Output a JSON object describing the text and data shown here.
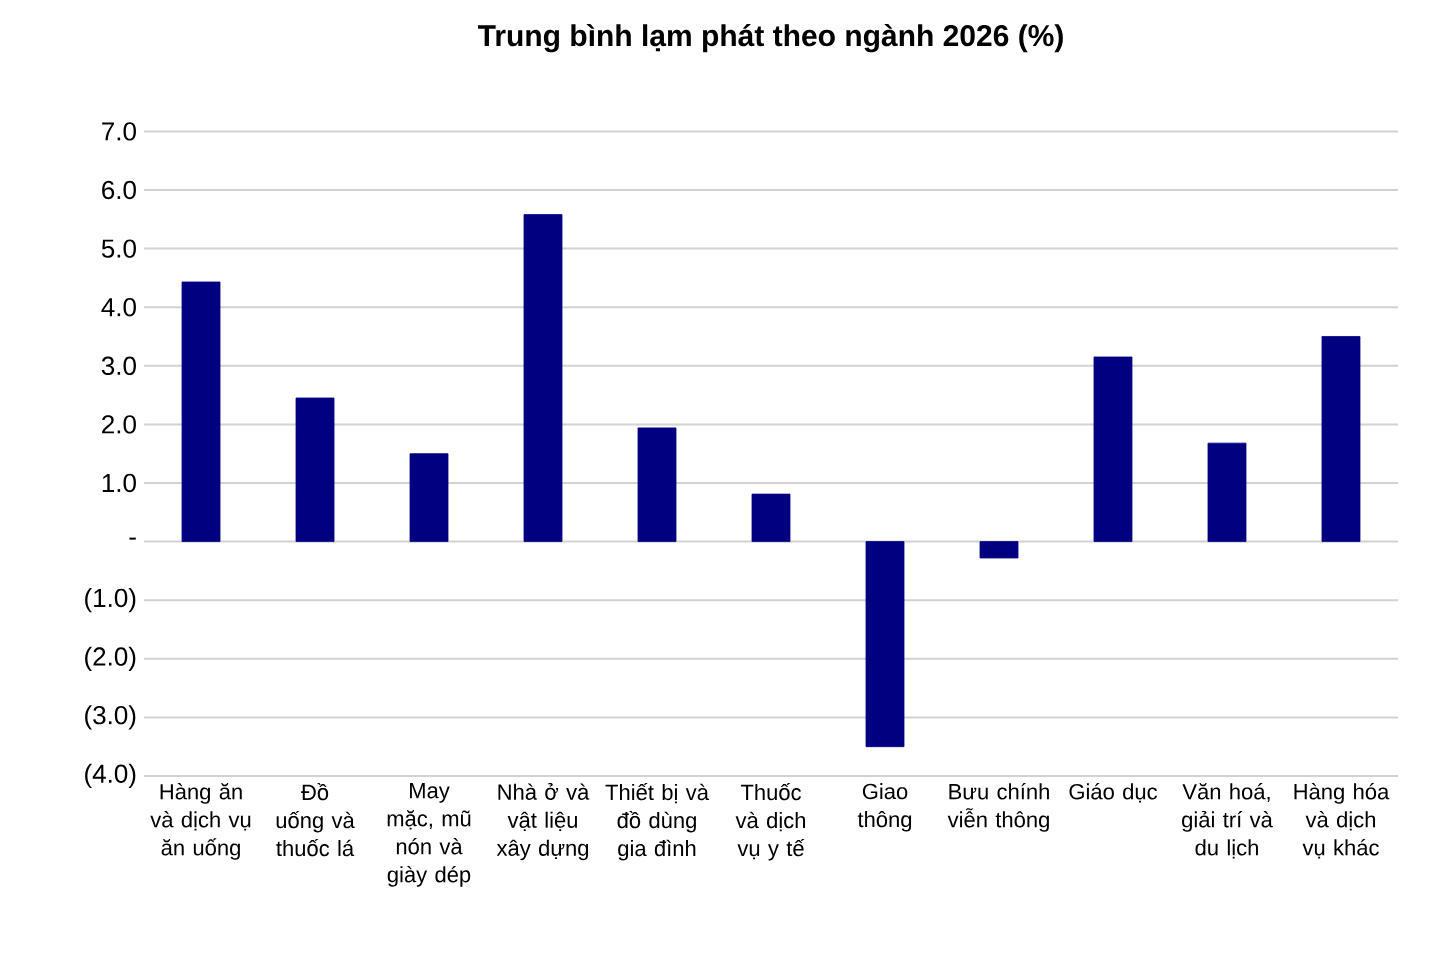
{
  "chart_data": {
    "type": "bar",
    "title": "Trung bình lạm phát theo ngành 2026 (%)",
    "categories": [
      "Hàng ăn và dịch vụ ăn uống",
      "Đồ uống và thuốc lá",
      "May mặc, mũ nón và giày dép",
      "Nhà ở và vật liệu xây dựng",
      "Thiết bị và đồ dùng gia đình",
      "Thuốc và dịch vụ y tế",
      "Giao thông",
      "Bưu chính viễn thông",
      "Giáo dục",
      "Văn hoá, giải trí và du lịch",
      "Hàng hóa và dịch vụ khác"
    ],
    "values": [
      4.43,
      2.45,
      1.5,
      5.58,
      1.94,
      0.81,
      -3.5,
      -0.28,
      3.15,
      1.68,
      3.5
    ],
    "color": "#000080",
    "ylim": [
      -4,
      7
    ],
    "yticks": [
      {
        "value": -4,
        "label": "(4.0)"
      },
      {
        "value": -3,
        "label": "(3.0)"
      },
      {
        "value": -2,
        "label": "(2.0)"
      },
      {
        "value": -1,
        "label": "(1.0)"
      },
      {
        "value": 0,
        "label": "-"
      },
      {
        "value": 1,
        "label": "1.0"
      },
      {
        "value": 2,
        "label": "2.0"
      },
      {
        "value": 3,
        "label": "3.0"
      },
      {
        "value": 4,
        "label": "4.0"
      },
      {
        "value": 5,
        "label": "5.0"
      },
      {
        "value": 6,
        "label": "6.0"
      },
      {
        "value": 7,
        "label": "7.0"
      }
    ],
    "grid": "y"
  }
}
